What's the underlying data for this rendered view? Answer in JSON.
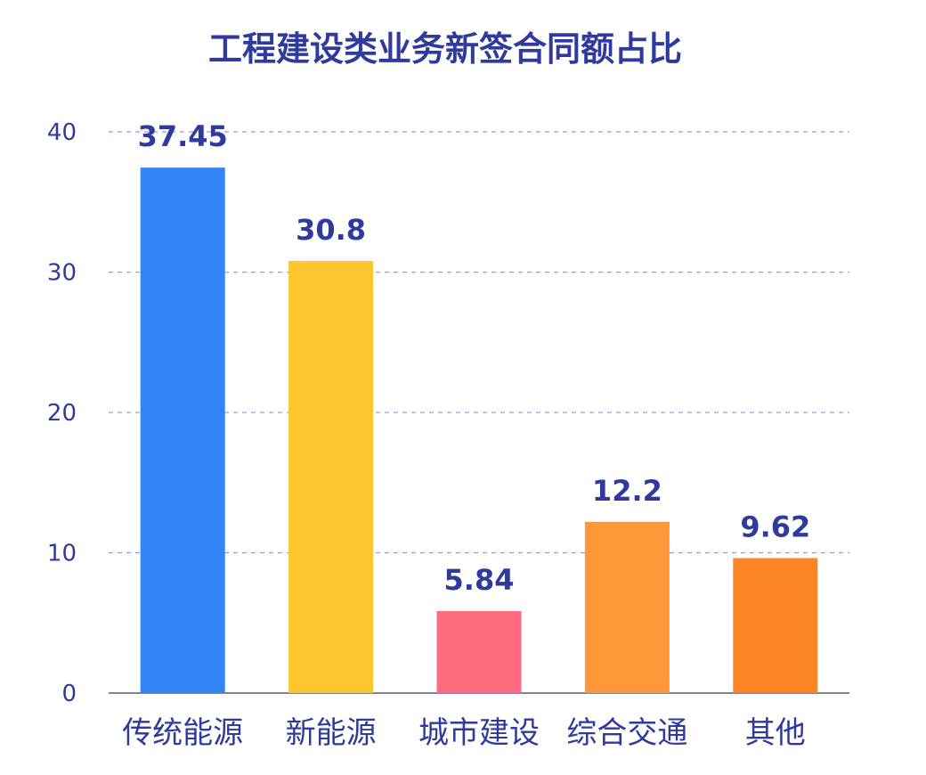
{
  "chart_data": {
    "type": "bar",
    "title": "工程建设类业务新签合同额占比",
    "xlabel": "",
    "ylabel": "",
    "categories": [
      "传统能源",
      "新能源",
      "城市建设",
      "综合交通",
      "其他"
    ],
    "values": [
      37.45,
      30.8,
      5.84,
      12.2,
      9.62
    ],
    "value_labels": [
      "37.45",
      "30.8",
      "5.84",
      "12.2",
      "9.62"
    ],
    "bar_colors": [
      "#3385F5",
      "#FDC52E",
      "#FF6C80",
      "#FF9838",
      "#FC8624"
    ],
    "ylim": [
      0,
      40
    ],
    "yticks": [
      0,
      10,
      20,
      30,
      40
    ],
    "ytick_labels": [
      "0",
      "10",
      "20",
      "30",
      "40"
    ],
    "grid": true,
    "legend": "none"
  }
}
